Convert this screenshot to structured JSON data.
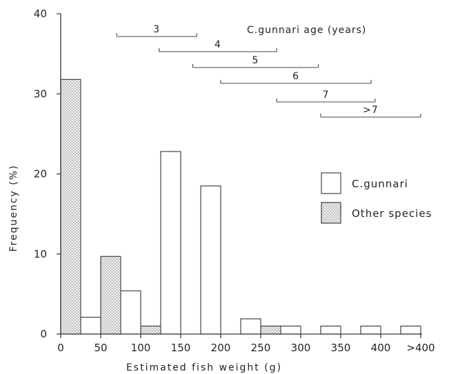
{
  "chart_data": {
    "type": "bar",
    "xlabel": "Estimated fish weight (g)",
    "ylabel": "Frequency (%)",
    "ylim": [
      0,
      40
    ],
    "yticks": [
      0,
      10,
      20,
      30,
      40
    ],
    "xticks": [
      "0",
      "50",
      "100",
      "150",
      "200",
      "250",
      "300",
      "350",
      "400",
      ">400"
    ],
    "bin_width": 25,
    "series": [
      {
        "name": "C.gunnari",
        "style": "open",
        "bins": [
          {
            "start": 25,
            "value": 2.1
          },
          {
            "start": 75,
            "value": 5.4
          },
          {
            "start": 125,
            "value": 22.8
          },
          {
            "start": 175,
            "value": 18.5
          },
          {
            "start": 225,
            "value": 1.9
          },
          {
            "start": 275,
            "value": 1.0
          },
          {
            "start": 325,
            "value": 1.0
          },
          {
            "start": 375,
            "value": 1.0
          },
          {
            "start": 425,
            "value": 1.0
          }
        ]
      },
      {
        "name": "Other species",
        "style": "stippled",
        "bins": [
          {
            "start": 0,
            "value": 31.8
          },
          {
            "start": 50,
            "value": 9.7
          },
          {
            "start": 100,
            "value": 1.0
          },
          {
            "start": 250,
            "value": 1.0
          }
        ]
      }
    ],
    "age_annotation": {
      "title": "C.gunnari age (years)",
      "ranges": [
        {
          "label": "3",
          "from": 70,
          "to": 170
        },
        {
          "label": "4",
          "from": 123,
          "to": 270
        },
        {
          "label": "5",
          "from": 165,
          "to": 322
        },
        {
          "label": "6",
          "from": 200,
          "to": 388
        },
        {
          "label": "7",
          "from": 270,
          "to": 393
        },
        {
          "label": ">7",
          "from": 325,
          "to": 450
        }
      ]
    },
    "legend": {
      "position": "right",
      "entries": [
        {
          "label": "C.gunnari",
          "style": "open"
        },
        {
          "label": "Other species",
          "style": "stippled"
        }
      ]
    }
  }
}
